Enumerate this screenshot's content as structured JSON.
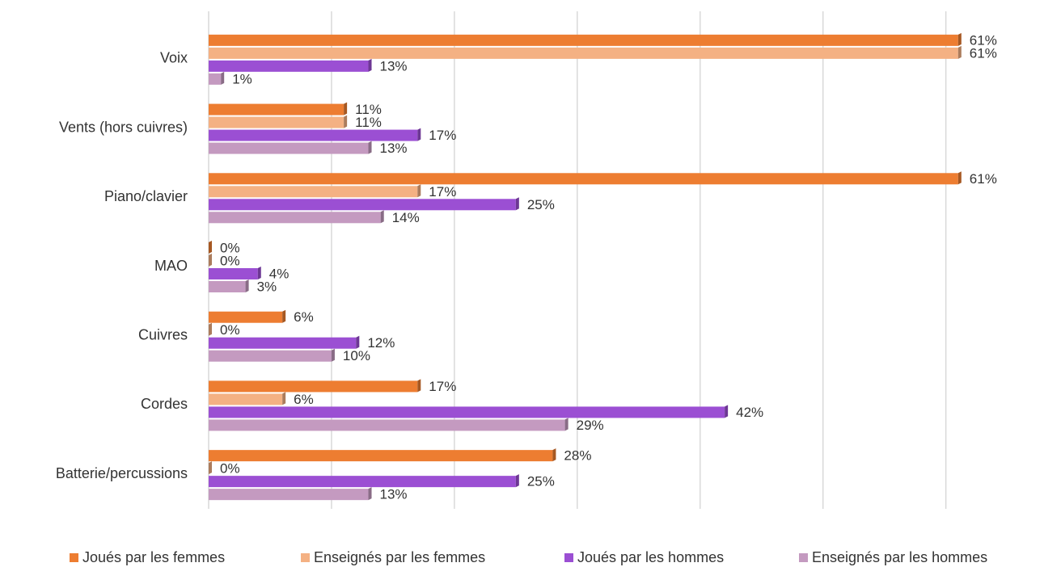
{
  "chart_data": {
    "type": "barh",
    "categories": [
      "Voix",
      "Vents (hors cuivres)",
      "Piano/clavier",
      "MAO",
      "Cuivres",
      "Cordes",
      "Batterie/percussions"
    ],
    "series": [
      {
        "name": "Joués par les femmes",
        "color": "#ed7d31",
        "values": [
          61,
          11,
          61,
          0,
          6,
          17,
          28
        ],
        "value_labels": [
          "61%",
          "11%",
          "61%",
          "0%",
          "6%",
          "17%",
          "28%"
        ]
      },
      {
        "name": "Enseignés par les femmes",
        "color": "#f4b183",
        "values": [
          61,
          11,
          17,
          0,
          0,
          6,
          0
        ],
        "value_labels": [
          "61%",
          "11%",
          "17%",
          "0%",
          "0%",
          "6%",
          "0%"
        ]
      },
      {
        "name": "Joués par les hommes",
        "color": "#9b4fd3",
        "values": [
          13,
          17,
          25,
          4,
          12,
          42,
          25
        ],
        "value_labels": [
          "13%",
          "17%",
          "25%",
          "4%",
          "12%",
          "42%",
          "25%"
        ]
      },
      {
        "name": "Enseignés par les hommes",
        "color": "#c49ac0",
        "values": [
          1,
          13,
          14,
          3,
          10,
          29,
          13
        ],
        "value_labels": [
          "1%",
          "13%",
          "14%",
          "3%",
          "10%",
          "29%",
          "13%"
        ]
      }
    ],
    "xlim": [
      0,
      62
    ],
    "xticks": [
      0,
      10,
      20,
      30,
      40,
      50,
      60
    ],
    "grid": true,
    "legend": "bottom"
  }
}
